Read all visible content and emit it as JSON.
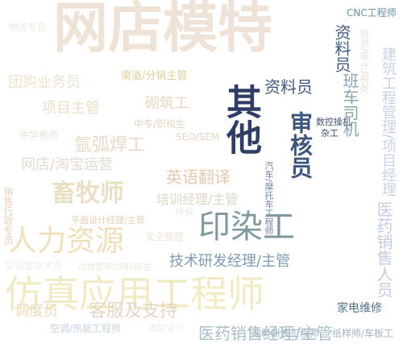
{
  "words": [
    {
      "id": "w01",
      "text": "网店模特",
      "color": "#efe2d6"
    },
    {
      "id": "w02",
      "text": "仿真应用工程师",
      "color": "#f1ebc4"
    },
    {
      "id": "w03",
      "text": "人力资源",
      "color": "#f0dfb8"
    },
    {
      "id": "w04",
      "text": "印染工",
      "color": "#7e9a9e"
    },
    {
      "id": "w05",
      "text": "其他",
      "color": "#2f3d66"
    },
    {
      "id": "w06",
      "text": "审核员",
      "color": "#3e557c"
    },
    {
      "id": "w07",
      "text": "畜牧师",
      "color": "#e9dfc3"
    },
    {
      "id": "w08",
      "text": "建筑工程管理/项目经理",
      "color": "#c8d2e4"
    },
    {
      "id": "w09",
      "text": "医药销售经理/主管",
      "color": "#a8bec8"
    },
    {
      "id": "w10",
      "text": "医药销售人员",
      "color": "#c2cee0"
    },
    {
      "id": "w11",
      "text": "技术研发经理/主管",
      "color": "#7f9cb0"
    },
    {
      "id": "w12",
      "text": "调度员",
      "color": "#ecdcbc"
    },
    {
      "id": "w13",
      "text": "客服及支持",
      "color": "#e4d7c2"
    },
    {
      "id": "w14",
      "text": "资料员",
      "color": "#3f5a82"
    },
    {
      "id": "w15",
      "text": "砌筑工",
      "color": "#ead7c4"
    },
    {
      "id": "w16",
      "text": "氩弧焊工",
      "color": "#e9d9c6"
    },
    {
      "id": "w17",
      "text": "英语翻译",
      "color": "#e6c9ac"
    },
    {
      "id": "w18",
      "text": "项目主管",
      "color": "#ecdfc8"
    },
    {
      "id": "w19",
      "text": "网店/淘宝运营",
      "color": "#e3dbd0"
    },
    {
      "id": "w20",
      "text": "团购业务员",
      "color": "#ede3cf"
    },
    {
      "id": "w21",
      "text": "班车司机",
      "color": "#8aa5b2"
    },
    {
      "id": "w22",
      "text": "培训经理/主管",
      "color": "#dcd6c2"
    },
    {
      "id": "w23",
      "text": "渠道/分销主管",
      "color": "#dcd09b"
    },
    {
      "id": "w24",
      "text": "CNC工程师",
      "color": "#6a8ea6"
    },
    {
      "id": "w25",
      "text": "数控操机",
      "color": "#3f4e6d"
    },
    {
      "id": "w26",
      "text": "杂工",
      "color": "#3f4e6d"
    },
    {
      "id": "w27",
      "text": "汽车/摩托车工程师",
      "color": "#6f84a0"
    },
    {
      "id": "w28",
      "text": "中专/职校生",
      "color": "#e5d4c2"
    },
    {
      "id": "w29",
      "text": "SEO/SEM",
      "color": "#e8d4c4"
    },
    {
      "id": "w30",
      "text": "家电维修",
      "color": "#4f6f8a"
    },
    {
      "id": "w31",
      "text": "涂料研发工程师",
      "color": "#9fb4c6"
    },
    {
      "id": "w32",
      "text": "纸样师/车板工",
      "color": "#9fb4c6"
    },
    {
      "id": "w33",
      "text": "空调/热能工程师",
      "color": "#c6d3e2"
    },
    {
      "id": "w34",
      "text": "销售行政专员",
      "color": "#e4d0b8"
    },
    {
      "id": "w35",
      "text": "中学教师",
      "color": "#ebe3d8"
    },
    {
      "id": "w36",
      "text": "动物营养/饲料研发",
      "color": "#eee8d6"
    },
    {
      "id": "w37",
      "text": "平面设计经理/主管",
      "color": "#e3cfb8"
    },
    {
      "id": "w38",
      "text": "安全管理",
      "color": "#ece5d8"
    },
    {
      "id": "w39",
      "text": "环保",
      "color": "#e8e6ee"
    },
    {
      "id": "w40",
      "text": "财务/审计/税务",
      "color": "#e6e0d6"
    },
    {
      "id": "w41",
      "text": "物流专员",
      "color": "#ece8e2"
    },
    {
      "id": "w42",
      "text": "实验室技术员",
      "color": "#efece6"
    },
    {
      "id": "w43",
      "text": "造型设计",
      "color": "#eeebe6"
    }
  ]
}
